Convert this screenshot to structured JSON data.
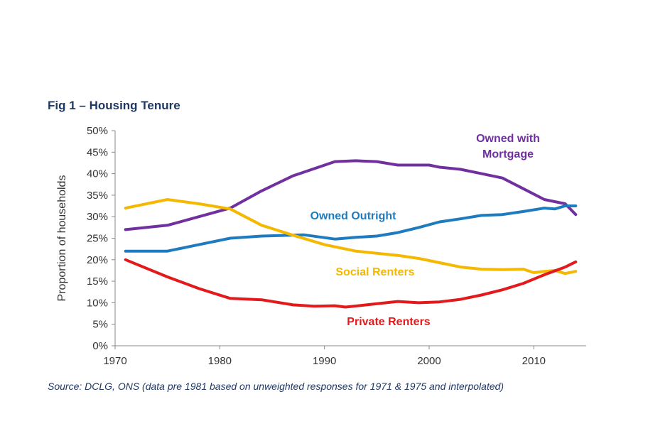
{
  "title": "Fig 1 – Housing Tenure",
  "source": "Source: DCLG, ONS (data pre 1981 based on unweighted responses for 1971 & 1975 and interpolated)",
  "chart_data": {
    "type": "line",
    "xlabel": "",
    "ylabel": "Proportion of households",
    "xlim": [
      1970,
      2015
    ],
    "ylim": [
      0,
      50
    ],
    "xticks": [
      1970,
      1980,
      1990,
      2000,
      2010
    ],
    "xtick_labels": [
      "1970",
      "1980",
      "1990",
      "2000",
      "2010"
    ],
    "yticks": [
      0,
      5,
      10,
      15,
      20,
      25,
      30,
      35,
      40,
      45,
      50
    ],
    "ytick_labels": [
      "0%",
      "5%",
      "10%",
      "15%",
      "20%",
      "25%",
      "30%",
      "35%",
      "40%",
      "45%",
      "50%"
    ],
    "grid": false,
    "series": [
      {
        "name": "Owned with Mortgage",
        "label_lines": [
          "Owned with",
          "Mortgage"
        ],
        "color": "#7030a0",
        "x": [
          1971,
          1975,
          1978,
          1981,
          1984,
          1987,
          1991,
          1993,
          1995,
          1997,
          1999,
          2000,
          2001,
          2003,
          2005,
          2007,
          2009,
          2011,
          2013,
          2014
        ],
        "y": [
          27,
          28,
          30,
          32,
          36,
          39.5,
          42.8,
          43,
          42.8,
          42,
          42,
          42,
          41.5,
          41,
          40,
          39,
          36.5,
          34,
          33,
          30.5
        ]
      },
      {
        "name": "Owned Outright",
        "label_lines": [
          "Owned Outright"
        ],
        "color": "#1f7bbf",
        "x": [
          1971,
          1975,
          1978,
          1981,
          1984,
          1988,
          1991,
          1993,
          1995,
          1997,
          1999,
          2001,
          2003,
          2005,
          2007,
          2009,
          2011,
          2012,
          2013,
          2014
        ],
        "y": [
          22,
          22,
          23.5,
          25,
          25.5,
          25.8,
          24.8,
          25.2,
          25.5,
          26.3,
          27.5,
          28.8,
          29.5,
          30.3,
          30.5,
          31.2,
          32,
          31.8,
          32.5,
          32.5
        ]
      },
      {
        "name": "Social Renters",
        "label_lines": [
          "Social Renters"
        ],
        "color": "#f5b800",
        "x": [
          1971,
          1975,
          1978,
          1981,
          1984,
          1987,
          1990,
          1993,
          1995,
          1997,
          1999,
          2001,
          2003,
          2005,
          2007,
          2009,
          2010,
          2011,
          2012,
          2013,
          2014
        ],
        "y": [
          32,
          34,
          33,
          31.8,
          28,
          25.7,
          23.5,
          22,
          21.5,
          21,
          20.3,
          19.3,
          18.3,
          17.8,
          17.7,
          17.8,
          17,
          17.3,
          17.5,
          16.8,
          17.3
        ]
      },
      {
        "name": "Private Renters",
        "label_lines": [
          "Private Renters"
        ],
        "color": "#e31a1c",
        "x": [
          1971,
          1975,
          1978,
          1981,
          1984,
          1987,
          1989,
          1991,
          1992,
          1994,
          1997,
          1999,
          2001,
          2003,
          2005,
          2007,
          2009,
          2011,
          2013,
          2014
        ],
        "y": [
          20,
          16,
          13.3,
          11,
          10.7,
          9.5,
          9.2,
          9.3,
          9,
          9.5,
          10.3,
          10,
          10.2,
          10.8,
          11.8,
          13,
          14.5,
          16.5,
          18.3,
          19.5
        ]
      }
    ]
  }
}
